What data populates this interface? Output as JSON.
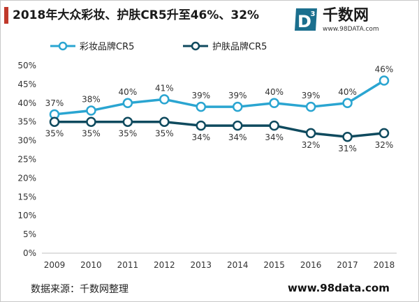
{
  "title": "2018年大众彩妆、护肤CR5升至46%、32%",
  "brand": {
    "name": "千数网",
    "url": "www.98DATA.com",
    "logo_letter": "D",
    "logo_superscript": "3"
  },
  "footer": {
    "source": "数据来源：千数网整理",
    "site": "www.98data.com"
  },
  "colors": {
    "cosmetics": "#2aa5d1",
    "skincare": "#0f4a5e",
    "axis_text": "#333333",
    "grid": "#d9d9d9"
  },
  "chart_data": {
    "type": "line",
    "categories": [
      "2009",
      "2010",
      "2011",
      "2012",
      "2013",
      "2014",
      "2015",
      "2016",
      "2017",
      "2018"
    ],
    "series": [
      {
        "name": "彩妆品牌CR5",
        "values": [
          37,
          38,
          40,
          41,
          39,
          39,
          40,
          39,
          40,
          46
        ],
        "labels": [
          "37%",
          "38%",
          "40%",
          "41%",
          "39%",
          "39%",
          "40%",
          "39%",
          "40%",
          "46%"
        ],
        "color": "#2aa5d1"
      },
      {
        "name": "护肤品牌CR5",
        "values": [
          35,
          35,
          35,
          35,
          34,
          34,
          34,
          32,
          31,
          32
        ],
        "labels": [
          "35%",
          "35%",
          "35%",
          "35%",
          "34%",
          "34%",
          "34%",
          "32%",
          "31%",
          "32%"
        ],
        "color": "#0f4a5e"
      }
    ],
    "y_ticks": [
      "0%",
      "5%",
      "10%",
      "15%",
      "20%",
      "25%",
      "30%",
      "35%",
      "40%",
      "45%",
      "50%"
    ],
    "ylim": [
      0,
      50
    ],
    "grid": false,
    "legend_position": "top-left"
  }
}
